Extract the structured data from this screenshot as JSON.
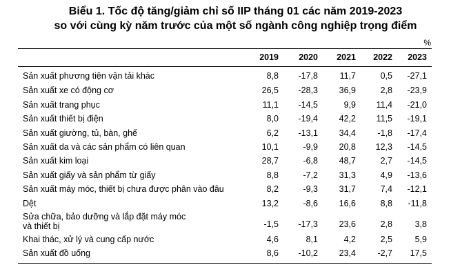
{
  "title_line1": "Biểu 1. Tốc độ tăng/giảm chỉ số IIP tháng 01 các năm 2019-2023",
  "title_line2": "so với cùng kỳ năm trước của một số ngành công nghiệp trọng điểm",
  "unit": "%",
  "years": [
    "2019",
    "2020",
    "2021",
    "2022",
    "2023"
  ],
  "rows": [
    {
      "label": "Sản xuất phương tiện vận tải khác",
      "values": [
        "8,8",
        "-17,8",
        "11,7",
        "0,5",
        "-27,1"
      ]
    },
    {
      "label": "Sản xuất xe có động cơ",
      "values": [
        "26,5",
        "-28,3",
        "36,9",
        "2,8",
        "-23,9"
      ]
    },
    {
      "label": "Sản xuất trang phục",
      "values": [
        "11,1",
        "-14,5",
        "9,9",
        "11,4",
        "-21,0"
      ]
    },
    {
      "label": "Sản xuất thiết bị điện",
      "values": [
        "8,0",
        "-19,4",
        "42,2",
        "11,5",
        "-19,1"
      ]
    },
    {
      "label": "Sản xuất giường, tủ, bàn, ghế",
      "values": [
        "6,2",
        "-13,1",
        "34,4",
        "-1,8",
        "-17,4"
      ]
    },
    {
      "label": "Sản xuất da và các sản phẩm có liên quan",
      "values": [
        "10,1",
        "-9,9",
        "20,8",
        "12,3",
        "-14,5"
      ]
    },
    {
      "label": "Sản xuất kim loại",
      "values": [
        "28,7",
        "-6,8",
        "48,7",
        "2,7",
        "-14,5"
      ]
    },
    {
      "label": "Sản xuất giấy và sản phẩm từ giấy",
      "values": [
        "8,8",
        "-7,2",
        "31,3",
        "4,9",
        "-13,6"
      ]
    },
    {
      "label": "Sản xuất máy móc, thiết bị chưa được phân vào đâu",
      "values": [
        "8,2",
        "-9,3",
        "31,7",
        "7,4",
        "-12,1"
      ]
    },
    {
      "label": "Dệt",
      "values": [
        "13,2",
        "-8,6",
        "16,6",
        "8,8",
        "-11,8"
      ]
    },
    {
      "label": "Sửa chữa, bảo dưỡng và lắp đặt máy móc",
      "label2": "và thiết bị",
      "values": [
        "-1,5",
        "-17,3",
        "23,6",
        "2,8",
        "3,8"
      ]
    },
    {
      "label": "Khai thác, xử lý và cung cấp nước",
      "values": [
        "4,6",
        "8,1",
        "4,2",
        "2,5",
        "5,9"
      ]
    },
    {
      "label": "Sản xuất đồ uống",
      "values": [
        "8,6",
        "-10,2",
        "23,4",
        "-2,7",
        "17,5"
      ]
    }
  ]
}
